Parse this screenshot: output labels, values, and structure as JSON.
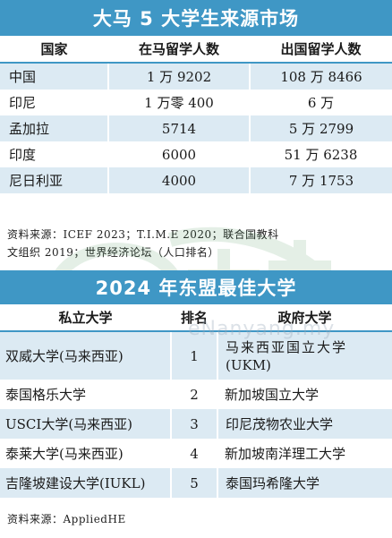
{
  "section1": {
    "title": "大马 5 大学生来源市场",
    "headers": [
      "国家",
      "在马留学人数",
      "出国留学人数"
    ],
    "rows": [
      [
        "中国",
        "1 万 9202",
        "108 万 8466"
      ],
      [
        "印尼",
        "1 万零 400",
        "6 万"
      ],
      [
        "孟加拉",
        "5714",
        "5 万 2799"
      ],
      [
        "印度",
        "6000",
        "51 万 6238"
      ],
      [
        "尼日利亚",
        "4000",
        "7 万 1753"
      ]
    ],
    "source_line1": "资料来源：ICEF 2023；T.I.M.E 2020；联合国教科",
    "source_line2": "文组织 2019；世界经济论坛（人口排名）"
  },
  "section2": {
    "title": "2024 年东盟最佳大学",
    "headers": [
      "私立大学",
      "排名",
      "政府大学"
    ],
    "rows": [
      [
        "双威大学(马来西亚)",
        "1",
        "马来西亚国立大学",
        "(UKM)"
      ],
      [
        "泰国格乐大学",
        "2",
        "新加坡国立大学",
        ""
      ],
      [
        "USCI大学(马来西亚)",
        "3",
        "印尼茂物农业大学",
        ""
      ],
      [
        "泰莱大学(马来西亚)",
        "4",
        "新加坡南洋理工大学",
        ""
      ],
      [
        "吉隆坡建设大学(IUKL)",
        "5",
        "泰国玛希隆大学",
        ""
      ]
    ],
    "source": "资料来源：AppliedHE"
  },
  "watermark": {
    "brand": "南洋",
    "url": "eNanyang.my"
  },
  "colors": {
    "accent": "#3f97c5",
    "row_tint": "#dceaf3"
  }
}
